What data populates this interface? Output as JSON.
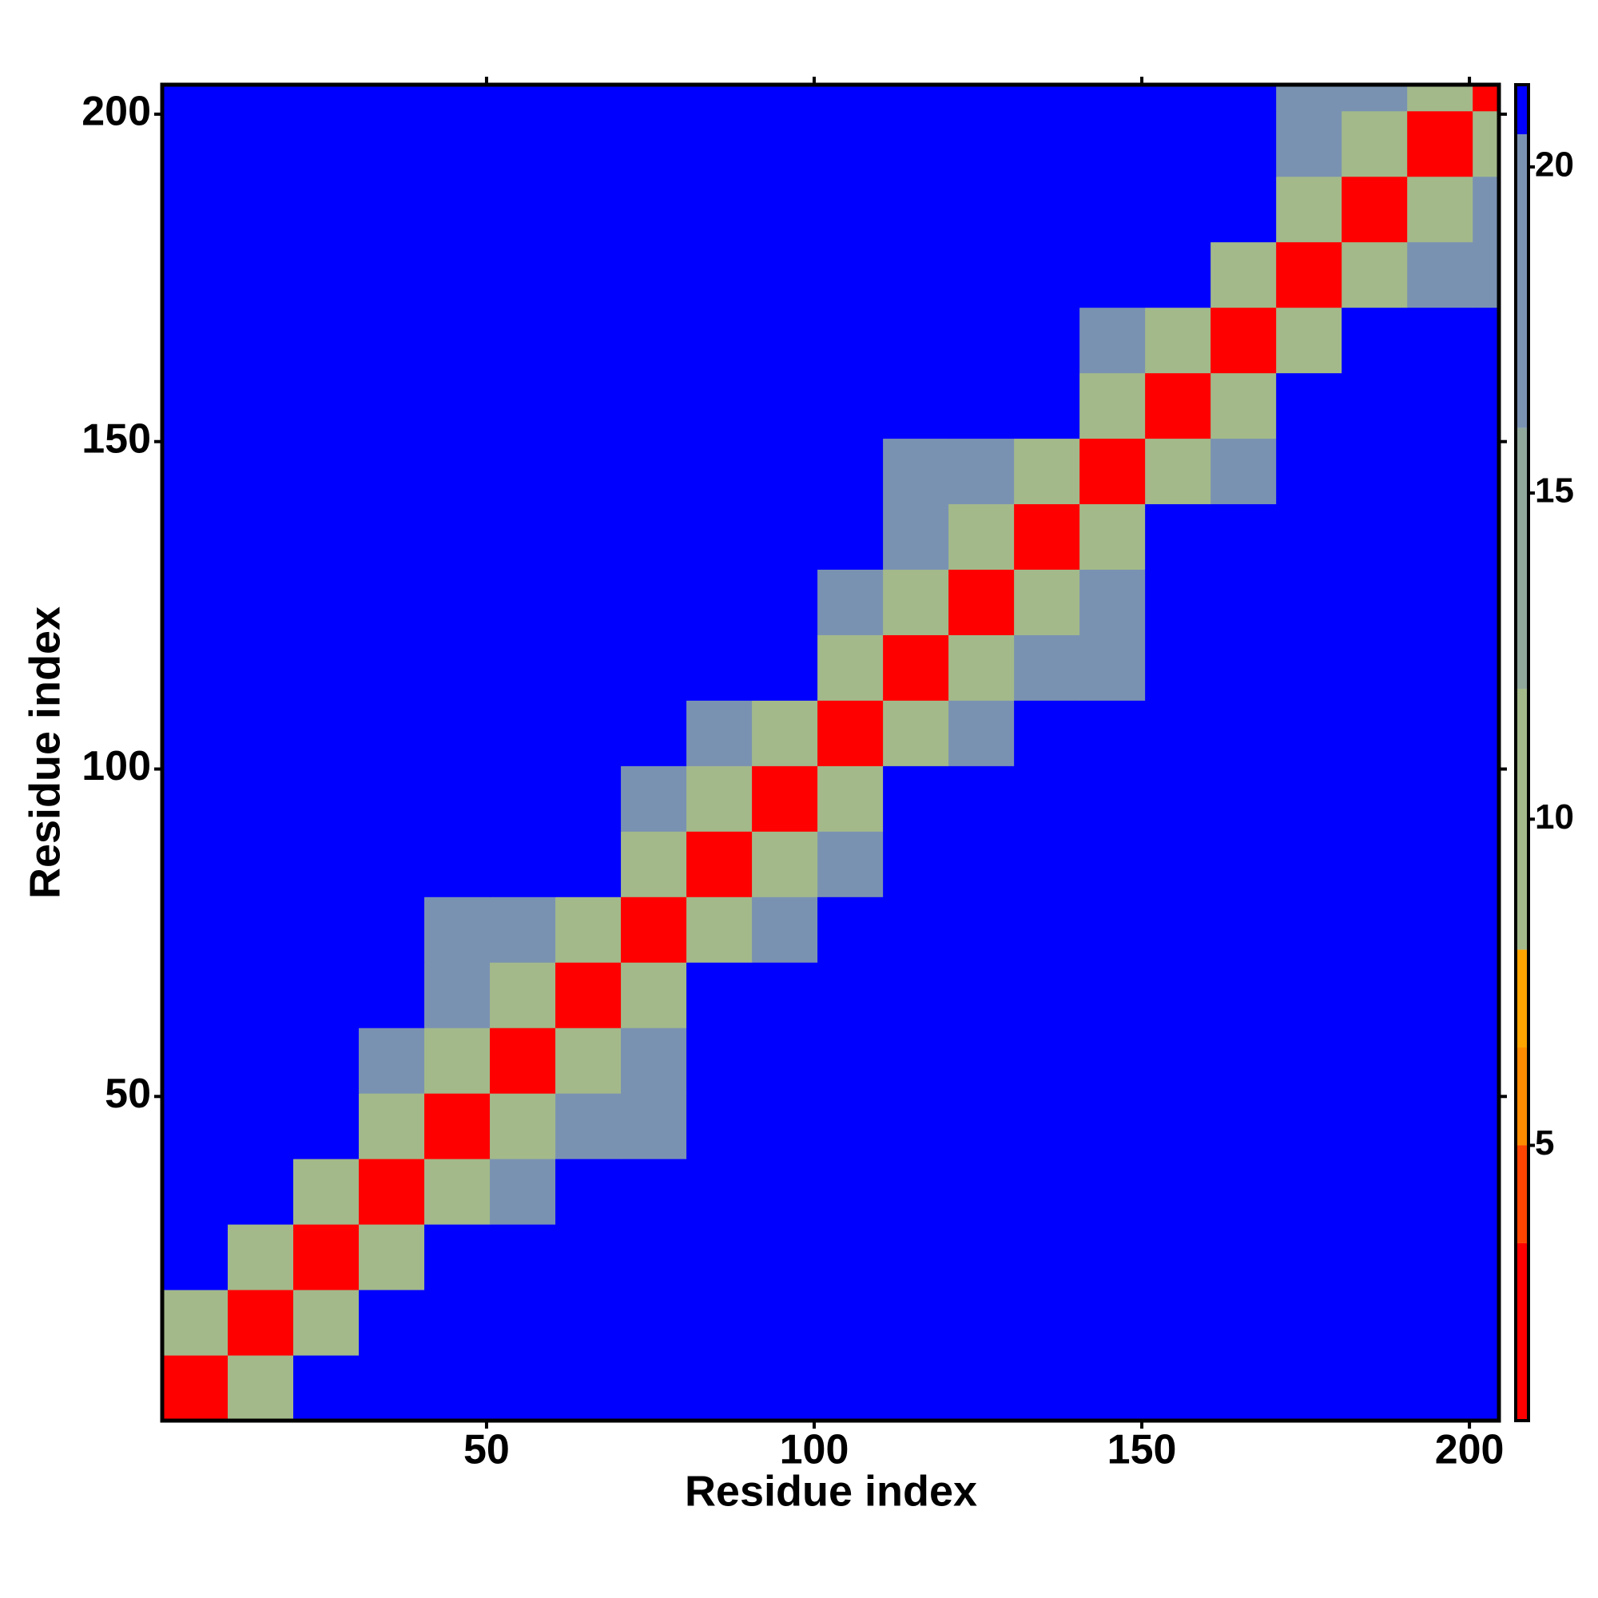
{
  "chart_data": {
    "type": "heatmap",
    "x_label": "Residue index",
    "y_label": "Residue index",
    "xbins": [
      0.5,
      10.5,
      20.5,
      30.5,
      40.5,
      50.5,
      60.5,
      70.5,
      80.5,
      90.5,
      100.5,
      110.5,
      120.5,
      130.5,
      140.5,
      150.5,
      160.5,
      170.5,
      180.5,
      190.5,
      200.5,
      204.5
    ],
    "ybins": [
      0.5,
      10.5,
      20.5,
      30.5,
      40.5,
      50.5,
      60.5,
      70.5,
      80.5,
      90.5,
      100.5,
      110.5,
      120.5,
      130.5,
      140.5,
      150.5,
      160.5,
      170.5,
      180.5,
      190.5,
      200.5,
      204.5
    ],
    "xlim": [
      0.5,
      204.5
    ],
    "ylim": [
      0.5,
      204.5
    ],
    "xticks": [
      50,
      100,
      150,
      200
    ],
    "yticks": [
      50,
      100,
      150,
      200
    ],
    "zlim": [
      0.78,
      21.26
    ],
    "zticks": [
      5,
      10,
      15,
      20
    ],
    "colorscale": [
      {
        "value": 0.78,
        "color": "#ff0000"
      },
      {
        "value": 3.5,
        "color": "#ff4500"
      },
      {
        "value": 5,
        "color": "#ff8c00"
      },
      {
        "value": 6.5,
        "color": "#ffa500"
      },
      {
        "value": 8,
        "color": "#a3b98a"
      },
      {
        "value": 12,
        "color": "#90a89c"
      },
      {
        "value": 16,
        "color": "#7a92b2"
      },
      {
        "value": 20.5,
        "color": "#0000ff"
      }
    ],
    "z": [
      [
        3,
        11,
        21,
        21,
        21,
        21,
        21,
        21,
        21,
        21,
        21,
        21,
        21,
        21,
        21,
        21,
        21,
        21,
        21,
        21,
        21
      ],
      [
        11,
        3,
        11,
        21,
        21,
        21,
        21,
        21,
        21,
        21,
        21,
        21,
        21,
        21,
        21,
        21,
        21,
        21,
        21,
        21,
        21
      ],
      [
        21,
        11,
        3,
        11,
        21,
        21,
        21,
        21,
        21,
        21,
        21,
        21,
        21,
        21,
        21,
        21,
        21,
        21,
        21,
        21,
        21
      ],
      [
        21,
        21,
        11,
        3,
        11,
        16,
        21,
        21,
        21,
        21,
        21,
        21,
        21,
        21,
        21,
        21,
        21,
        21,
        21,
        21,
        21
      ],
      [
        21,
        21,
        21,
        11,
        3,
        9,
        16,
        19,
        21,
        21,
        21,
        21,
        21,
        21,
        21,
        21,
        21,
        21,
        21,
        21,
        21
      ],
      [
        21,
        21,
        21,
        16,
        9,
        3,
        9,
        16,
        21,
        21,
        21,
        21,
        21,
        21,
        21,
        21,
        21,
        21,
        21,
        21,
        21
      ],
      [
        21,
        21,
        21,
        21,
        16,
        9,
        3,
        11,
        21,
        21,
        21,
        21,
        21,
        21,
        21,
        21,
        21,
        21,
        21,
        21,
        21
      ],
      [
        21,
        21,
        21,
        21,
        19,
        16,
        11,
        3,
        11,
        17,
        21,
        21,
        21,
        21,
        21,
        21,
        21,
        21,
        21,
        21,
        21
      ],
      [
        21,
        21,
        21,
        21,
        21,
        21,
        21,
        11,
        3,
        11,
        17,
        21,
        21,
        21,
        21,
        21,
        21,
        21,
        21,
        21,
        21
      ],
      [
        21,
        21,
        21,
        21,
        21,
        21,
        21,
        17,
        11,
        3,
        11,
        21,
        21,
        21,
        21,
        21,
        21,
        21,
        21,
        21,
        21
      ],
      [
        21,
        21,
        21,
        21,
        21,
        21,
        21,
        21,
        17,
        11,
        3,
        11,
        17,
        21,
        21,
        21,
        21,
        21,
        21,
        21,
        21
      ],
      [
        21,
        21,
        21,
        21,
        21,
        21,
        21,
        21,
        21,
        21,
        11,
        3,
        9,
        17,
        19,
        21,
        21,
        21,
        21,
        21,
        21
      ],
      [
        21,
        21,
        21,
        21,
        21,
        21,
        21,
        21,
        21,
        21,
        17,
        9,
        3,
        9,
        17,
        21,
        21,
        21,
        21,
        21,
        21
      ],
      [
        21,
        21,
        21,
        21,
        21,
        21,
        21,
        21,
        21,
        21,
        21,
        17,
        9,
        3,
        11,
        21,
        21,
        21,
        21,
        21,
        21
      ],
      [
        21,
        21,
        21,
        21,
        21,
        21,
        21,
        21,
        21,
        21,
        21,
        19,
        17,
        11,
        3,
        11,
        19,
        21,
        21,
        21,
        21
      ],
      [
        21,
        21,
        21,
        21,
        21,
        21,
        21,
        21,
        21,
        21,
        21,
        21,
        21,
        21,
        11,
        3,
        11,
        21,
        21,
        21,
        21
      ],
      [
        21,
        21,
        21,
        21,
        21,
        21,
        21,
        21,
        21,
        21,
        21,
        21,
        21,
        21,
        19,
        11,
        3,
        11,
        21,
        21,
        21
      ],
      [
        21,
        21,
        21,
        21,
        21,
        21,
        21,
        21,
        21,
        21,
        21,
        21,
        21,
        21,
        21,
        21,
        11,
        3,
        11,
        16,
        19
      ],
      [
        21,
        21,
        21,
        21,
        21,
        21,
        21,
        21,
        21,
        21,
        21,
        21,
        21,
        21,
        21,
        21,
        21,
        11,
        3,
        9,
        16
      ],
      [
        21,
        21,
        21,
        21,
        21,
        21,
        21,
        21,
        21,
        21,
        21,
        21,
        21,
        21,
        21,
        21,
        21,
        16,
        9,
        3,
        9
      ],
      [
        21,
        21,
        21,
        21,
        21,
        21,
        21,
        21,
        21,
        21,
        21,
        21,
        21,
        21,
        21,
        21,
        21,
        19,
        16,
        9,
        3
      ]
    ]
  }
}
